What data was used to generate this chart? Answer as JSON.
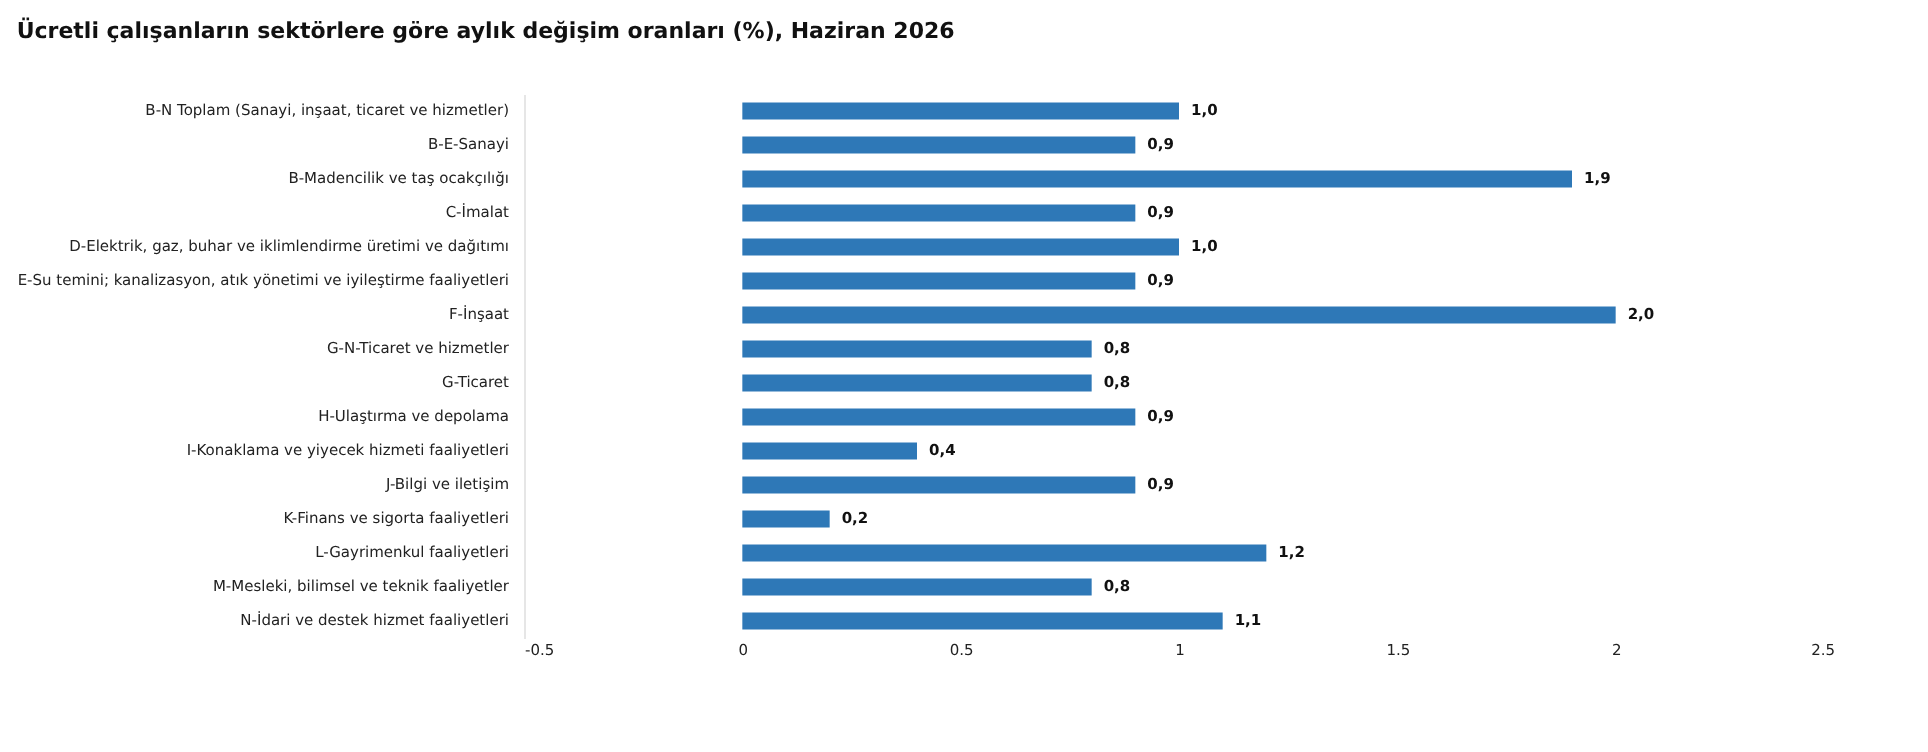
{
  "chart_data": {
    "type": "bar",
    "orientation": "horizontal",
    "title": "Ücretli çalışanların sektörlere göre aylık değişim oranları (%), Haziran 2026",
    "categories": [
      "B-N Toplam (Sanayi, inşaat, ticaret ve hizmetler)",
      "B-E-Sanayi",
      "B-Madencilik ve taş ocakçılığı",
      "C-İmalat",
      "D-Elektrik, gaz, buhar ve iklimlendirme üretimi ve dağıtımı",
      "E-Su temini; kanalizasyon, atık yönetimi ve iyileştirme faaliyetleri",
      "F-İnşaat",
      "G-N-Ticaret ve hizmetler",
      "G-Ticaret",
      "H-Ulaştırma ve depolama",
      "I-Konaklama ve yiyecek hizmeti faaliyetleri",
      "J-Bilgi ve iletişim",
      "K-Finans ve sigorta faaliyetleri",
      "L-Gayrimenkul faaliyetleri",
      "M-Mesleki, bilimsel ve teknik faaliyetler",
      "N-İdari ve destek hizmet faaliyetleri"
    ],
    "values": [
      1.0,
      0.9,
      1.9,
      0.9,
      1.0,
      0.9,
      2.0,
      0.8,
      0.8,
      0.9,
      0.4,
      0.9,
      0.2,
      1.2,
      0.8,
      1.1
    ],
    "value_labels": [
      "1,0",
      "0,9",
      "1,9",
      "0,9",
      "1,0",
      "0,9",
      "2,0",
      "0,8",
      "0,8",
      "0,9",
      "0,4",
      "0,9",
      "0,2",
      "1,2",
      "0,8",
      "1,1"
    ],
    "color": "#2e78b7",
    "xlim": [
      -0.5,
      2.5
    ],
    "xticks": [
      -0.5,
      0,
      0.5,
      1,
      1.5,
      2,
      2.5
    ],
    "grid": false
  }
}
